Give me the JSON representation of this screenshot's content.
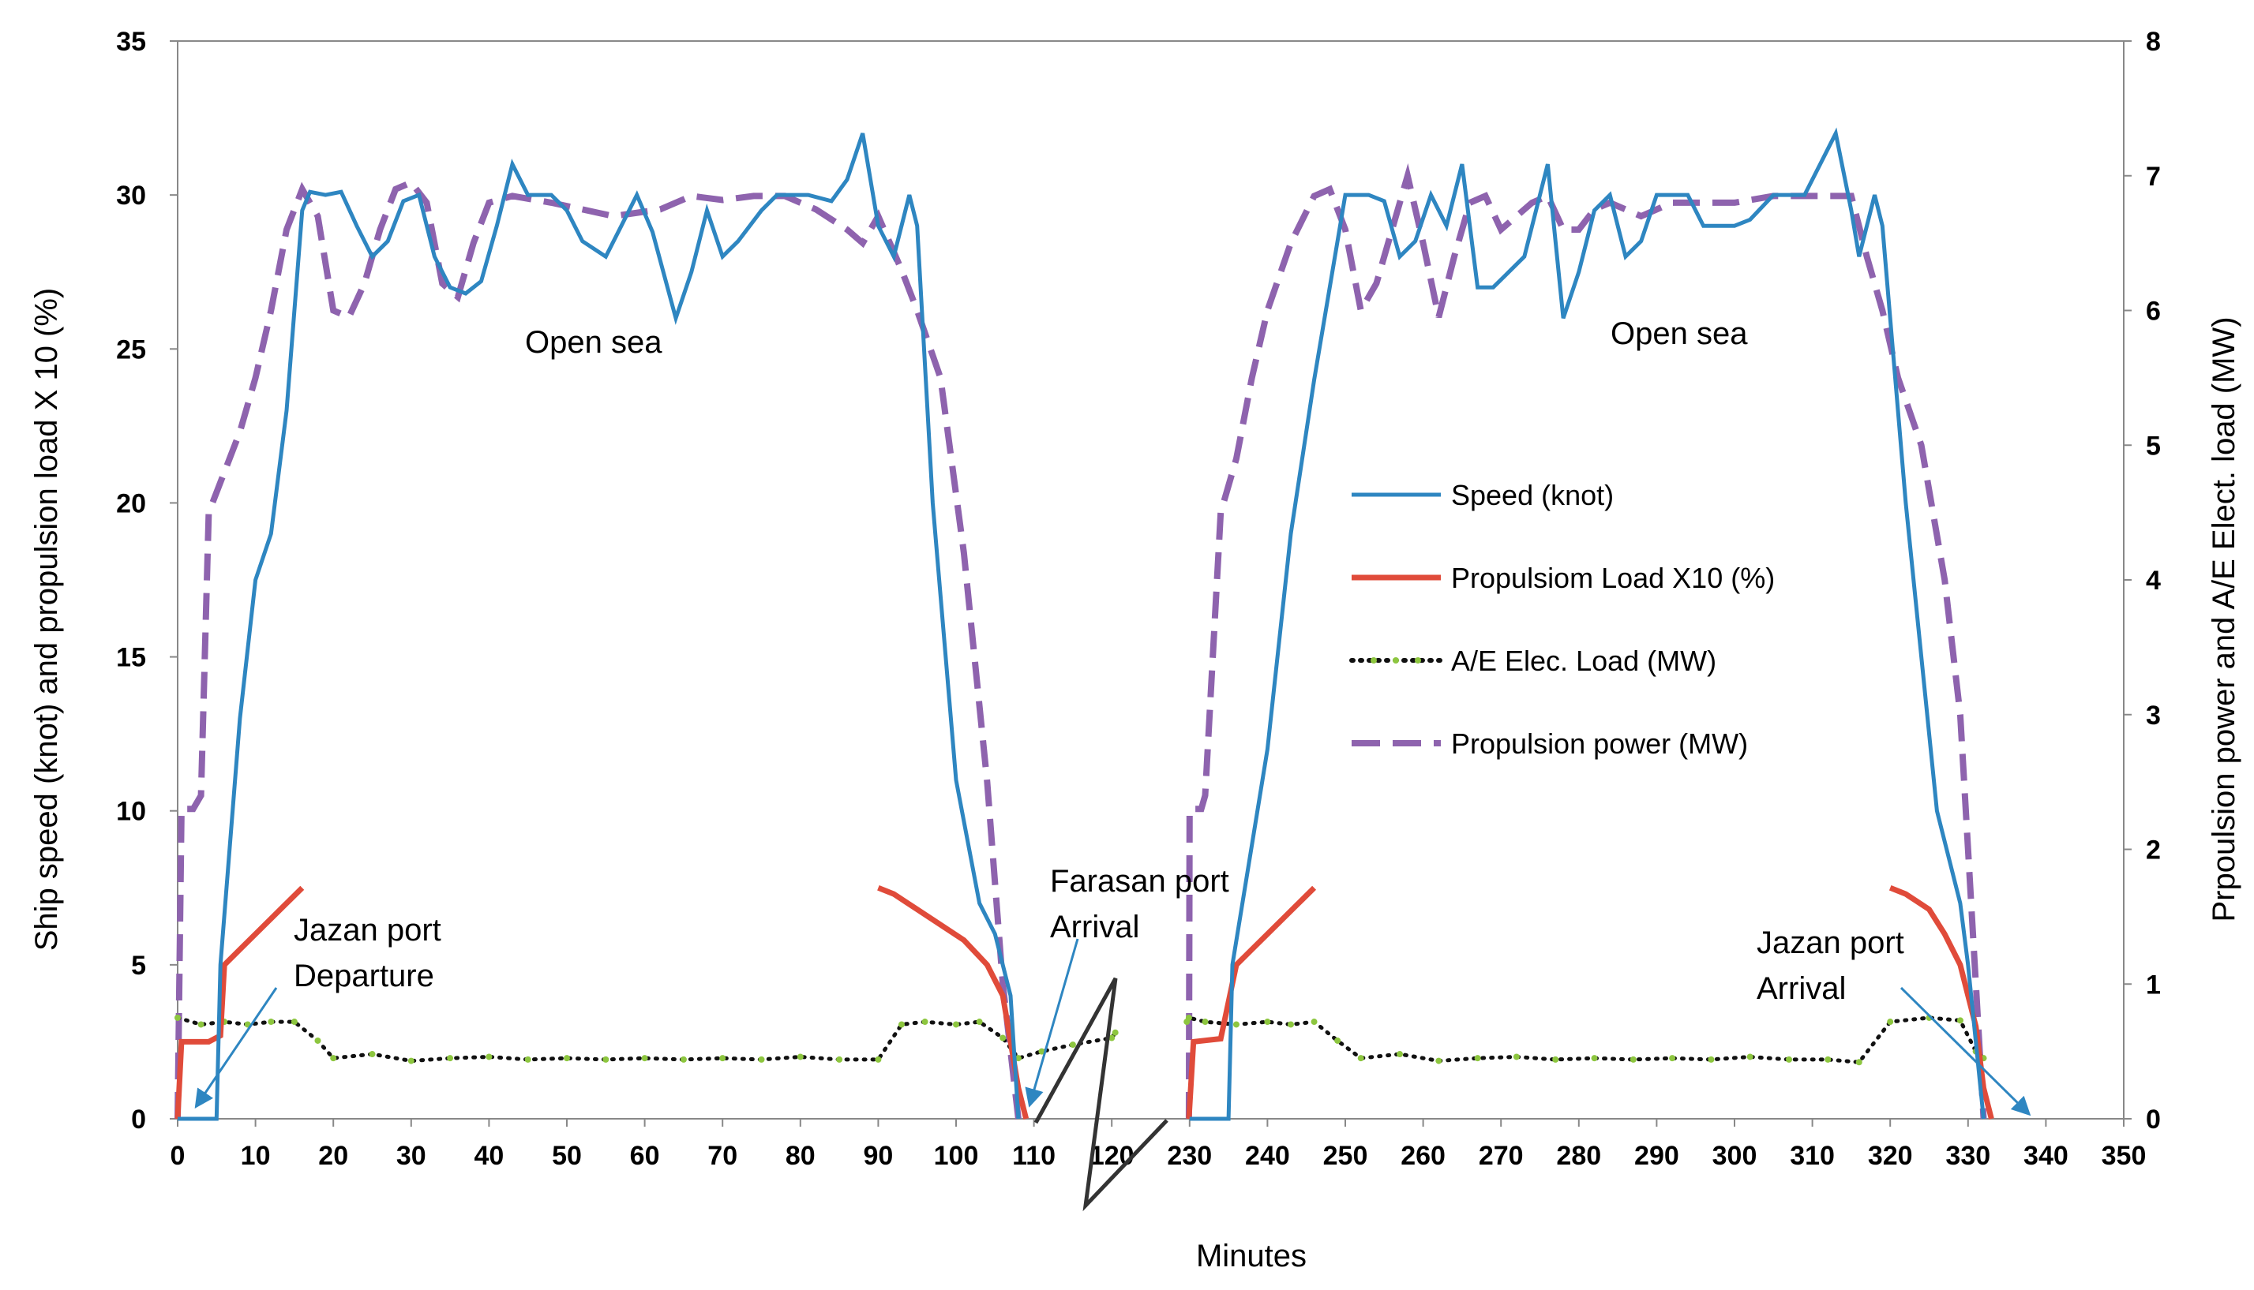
{
  "chart_data": {
    "type": "line",
    "xlabel": "Minutes",
    "ylabel_left": "Ship speed (knot) and propulsion load X 10 (%)",
    "ylabel_right": "Prpoulsion power and A/E  Elect. load (MW)",
    "x_ticks": [
      "0",
      "10",
      "20",
      "30",
      "40",
      "50",
      "60",
      "70",
      "80",
      "90",
      "100",
      "110",
      "120",
      "230",
      "240",
      "250",
      "260",
      "270",
      "280",
      "290",
      "300",
      "310",
      "320",
      "330",
      "340",
      "350"
    ],
    "y_left_ticks": [
      "0",
      "5",
      "10",
      "15",
      "20",
      "25",
      "30",
      "35"
    ],
    "y_right_ticks": [
      "0",
      "1",
      "2",
      "3",
      "4",
      "5",
      "6",
      "7",
      "8"
    ],
    "ylim_left": [
      0,
      35
    ],
    "ylim_right": [
      0,
      8
    ],
    "grid": false,
    "axis_break": "between 120 and 230 minutes",
    "colors": {
      "speed": "#2E86C1",
      "load": "#E04B3A",
      "ae": "#111111",
      "ae_marker": "#8DC63F",
      "power": "#8E63AE",
      "arrow": "#2E86C1",
      "break": "#333333"
    },
    "annotations": [
      {
        "id": "open-sea-1",
        "lines": [
          "Open sea"
        ]
      },
      {
        "id": "open-sea-2",
        "lines": [
          "Open sea"
        ]
      },
      {
        "id": "jazan-departure",
        "lines": [
          "Jazan  port",
          "Departure"
        ]
      },
      {
        "id": "farasan-arrival",
        "lines": [
          "Farasan port",
          "Arrival"
        ]
      },
      {
        "id": "jazan-arrival",
        "lines": [
          "Jazan  port",
          "Arrival"
        ]
      }
    ],
    "legend": [
      {
        "key": "speed",
        "label": "Speed (knot)",
        "style": "solid"
      },
      {
        "key": "load",
        "label": "Propulsiom Load X10 (%)",
        "style": "solid"
      },
      {
        "key": "ae",
        "label": "A/E  Elec. Load (MW)",
        "style": "dotted"
      },
      {
        "key": "power",
        "label": "Propulsion power (MW)",
        "style": "dashed"
      }
    ],
    "series": [
      {
        "key": "speed",
        "name": "Speed (knot)",
        "axis": "left",
        "points": [
          [
            0,
            0
          ],
          [
            5,
            0
          ],
          [
            5.5,
            5
          ],
          [
            8,
            13
          ],
          [
            10,
            17.5
          ],
          [
            12,
            19
          ],
          [
            14,
            23
          ],
          [
            16,
            29.5
          ],
          [
            17,
            30.1
          ],
          [
            19,
            30
          ],
          [
            21,
            30.1
          ],
          [
            23,
            29
          ],
          [
            25,
            28
          ],
          [
            27,
            28.5
          ],
          [
            29,
            29.8
          ],
          [
            31,
            30
          ],
          [
            33,
            28
          ],
          [
            35,
            27
          ],
          [
            37,
            26.8
          ],
          [
            39,
            27.2
          ],
          [
            41,
            29
          ],
          [
            43,
            31
          ],
          [
            45,
            30
          ],
          [
            48,
            30
          ],
          [
            50,
            29.5
          ],
          [
            52,
            28.5
          ],
          [
            55,
            28
          ],
          [
            57,
            29
          ],
          [
            59,
            30
          ],
          [
            61,
            28.8
          ],
          [
            64,
            26
          ],
          [
            66,
            27.5
          ],
          [
            68,
            29.5
          ],
          [
            70,
            28
          ],
          [
            72,
            28.5
          ],
          [
            75,
            29.5
          ],
          [
            77,
            30
          ],
          [
            79,
            30
          ],
          [
            81,
            30
          ],
          [
            84,
            29.8
          ],
          [
            86,
            30.5
          ],
          [
            88,
            32
          ],
          [
            90,
            29
          ],
          [
            92,
            28
          ],
          [
            94,
            30
          ],
          [
            95,
            29
          ],
          [
            97,
            20
          ],
          [
            100,
            11
          ],
          [
            103,
            7
          ],
          [
            105,
            6
          ],
          [
            107,
            4
          ],
          [
            108,
            0
          ],
          [
            230,
            0
          ],
          [
            235,
            0
          ],
          [
            235.5,
            5
          ],
          [
            240,
            12
          ],
          [
            243,
            19
          ],
          [
            246,
            24
          ],
          [
            248,
            27
          ],
          [
            250,
            30
          ],
          [
            253,
            30
          ],
          [
            255,
            29.8
          ],
          [
            257,
            28
          ],
          [
            259,
            28.5
          ],
          [
            261,
            30
          ],
          [
            263,
            29
          ],
          [
            265,
            31
          ],
          [
            267,
            27
          ],
          [
            269,
            27
          ],
          [
            271,
            27.5
          ],
          [
            273,
            28
          ],
          [
            276,
            31
          ],
          [
            278,
            26
          ],
          [
            280,
            27.5
          ],
          [
            282,
            29.5
          ],
          [
            284,
            30
          ],
          [
            286,
            28
          ],
          [
            288,
            28.5
          ],
          [
            290,
            30
          ],
          [
            292,
            30
          ],
          [
            294,
            30
          ],
          [
            296,
            29
          ],
          [
            300,
            29
          ],
          [
            302,
            29.2
          ],
          [
            305,
            30
          ],
          [
            309,
            30
          ],
          [
            311,
            31
          ],
          [
            313,
            32
          ],
          [
            315,
            29.5
          ],
          [
            316,
            28
          ],
          [
            318,
            30
          ],
          [
            319,
            29
          ],
          [
            322,
            20
          ],
          [
            326,
            10
          ],
          [
            329,
            7
          ],
          [
            330,
            5
          ],
          [
            332,
            0
          ]
        ]
      },
      {
        "key": "load",
        "name": "Propulsiom Load X10 (%)",
        "axis": "left",
        "points": [
          [
            0,
            0
          ],
          [
            0.5,
            2.5
          ],
          [
            4,
            2.5
          ],
          [
            5.5,
            2.7
          ],
          [
            6,
            5
          ],
          [
            8,
            5.5
          ],
          [
            10,
            6
          ],
          [
            12,
            6.5
          ],
          [
            14,
            7
          ],
          [
            16,
            7.5
          ],
          [
            90,
            7.5
          ],
          [
            92,
            7.3
          ],
          [
            95,
            6.8
          ],
          [
            98,
            6.3
          ],
          [
            101,
            5.8
          ],
          [
            104,
            5
          ],
          [
            106,
            4
          ],
          [
            107,
            2.5
          ],
          [
            108,
            1
          ],
          [
            109,
            0
          ],
          [
            229,
            0
          ],
          [
            230.5,
            2.5
          ],
          [
            234,
            2.6
          ],
          [
            236,
            5
          ],
          [
            238,
            5.5
          ],
          [
            240,
            6
          ],
          [
            242,
            6.5
          ],
          [
            244,
            7
          ],
          [
            246,
            7.5
          ],
          [
            320,
            7.5
          ],
          [
            322,
            7.3
          ],
          [
            325,
            6.8
          ],
          [
            327,
            6
          ],
          [
            329,
            5
          ],
          [
            331,
            3
          ],
          [
            332,
            1
          ],
          [
            333,
            0
          ]
        ]
      },
      {
        "key": "ae",
        "name": "A/E  Elec. Load (MW)",
        "axis": "right",
        "points": [
          [
            0,
            0.75
          ],
          [
            3,
            0.7
          ],
          [
            6,
            0.72
          ],
          [
            9,
            0.7
          ],
          [
            12,
            0.72
          ],
          [
            15,
            0.72
          ],
          [
            18,
            0.58
          ],
          [
            20,
            0.45
          ],
          [
            25,
            0.48
          ],
          [
            30,
            0.43
          ],
          [
            35,
            0.45
          ],
          [
            40,
            0.46
          ],
          [
            45,
            0.44
          ],
          [
            50,
            0.45
          ],
          [
            55,
            0.44
          ],
          [
            60,
            0.45
          ],
          [
            65,
            0.44
          ],
          [
            70,
            0.45
          ],
          [
            75,
            0.44
          ],
          [
            80,
            0.46
          ],
          [
            85,
            0.44
          ],
          [
            90,
            0.44
          ],
          [
            93,
            0.7
          ],
          [
            96,
            0.72
          ],
          [
            100,
            0.7
          ],
          [
            103,
            0.72
          ],
          [
            106,
            0.6
          ],
          [
            108,
            0.45
          ],
          [
            111,
            0.5
          ],
          [
            115,
            0.55
          ],
          [
            120,
            0.6
          ],
          [
            125,
            0.64
          ],
          [
            226,
            0.72
          ],
          [
            229,
            0.75
          ],
          [
            232,
            0.72
          ],
          [
            236,
            0.7
          ],
          [
            240,
            0.72
          ],
          [
            243,
            0.7
          ],
          [
            246,
            0.72
          ],
          [
            249,
            0.58
          ],
          [
            252,
            0.45
          ],
          [
            257,
            0.48
          ],
          [
            262,
            0.43
          ],
          [
            267,
            0.45
          ],
          [
            272,
            0.46
          ],
          [
            277,
            0.44
          ],
          [
            282,
            0.45
          ],
          [
            287,
            0.44
          ],
          [
            292,
            0.45
          ],
          [
            297,
            0.44
          ],
          [
            302,
            0.46
          ],
          [
            307,
            0.44
          ],
          [
            312,
            0.44
          ],
          [
            316,
            0.42
          ],
          [
            320,
            0.72
          ],
          [
            325,
            0.75
          ],
          [
            329,
            0.73
          ],
          [
            331,
            0.5
          ],
          [
            332,
            0.45
          ]
        ]
      },
      {
        "key": "power",
        "name": "Propulsion power (MW)",
        "axis": "right",
        "points": [
          [
            0,
            0
          ],
          [
            0.5,
            2.3
          ],
          [
            2,
            2.3
          ],
          [
            3,
            2.4
          ],
          [
            4,
            4.5
          ],
          [
            6,
            4.8
          ],
          [
            8,
            5.1
          ],
          [
            10,
            5.5
          ],
          [
            12,
            6
          ],
          [
            14,
            6.6
          ],
          [
            16,
            6.9
          ],
          [
            18,
            6.7
          ],
          [
            20,
            6.0
          ],
          [
            22,
            5.95
          ],
          [
            24,
            6.2
          ],
          [
            26,
            6.6
          ],
          [
            28,
            6.9
          ],
          [
            30,
            6.95
          ],
          [
            32,
            6.8
          ],
          [
            34,
            6.2
          ],
          [
            36,
            6.1
          ],
          [
            38,
            6.5
          ],
          [
            40,
            6.8
          ],
          [
            43,
            6.85
          ],
          [
            48,
            6.8
          ],
          [
            52,
            6.75
          ],
          [
            56,
            6.7
          ],
          [
            62,
            6.75
          ],
          [
            66,
            6.85
          ],
          [
            70,
            6.82
          ],
          [
            74,
            6.85
          ],
          [
            78,
            6.85
          ],
          [
            82,
            6.75
          ],
          [
            86,
            6.6
          ],
          [
            88,
            6.5
          ],
          [
            90,
            6.7
          ],
          [
            93,
            6.3
          ],
          [
            95,
            6.0
          ],
          [
            98,
            5.5
          ],
          [
            101,
            4.2
          ],
          [
            104,
            2.5
          ],
          [
            106,
            1.0
          ],
          [
            108,
            0
          ],
          [
            229,
            0
          ],
          [
            230,
            2.3
          ],
          [
            231.5,
            2.3
          ],
          [
            232,
            2.4
          ],
          [
            234,
            4.5
          ],
          [
            236,
            4.9
          ],
          [
            238,
            5.5
          ],
          [
            240,
            6
          ],
          [
            243,
            6.5
          ],
          [
            246,
            6.85
          ],
          [
            248,
            6.9
          ],
          [
            250,
            6.6
          ],
          [
            252,
            6.0
          ],
          [
            254,
            6.2
          ],
          [
            256,
            6.6
          ],
          [
            258,
            7.0
          ],
          [
            260,
            6.5
          ],
          [
            262,
            5.95
          ],
          [
            264,
            6.4
          ],
          [
            266,
            6.8
          ],
          [
            268,
            6.85
          ],
          [
            270,
            6.6
          ],
          [
            272,
            6.7
          ],
          [
            274,
            6.8
          ],
          [
            276,
            6.85
          ],
          [
            278,
            6.6
          ],
          [
            280,
            6.6
          ],
          [
            282,
            6.75
          ],
          [
            284,
            6.8
          ],
          [
            286,
            6.75
          ],
          [
            288,
            6.7
          ],
          [
            290,
            6.75
          ],
          [
            292,
            6.8
          ],
          [
            295,
            6.8
          ],
          [
            300,
            6.8
          ],
          [
            305,
            6.85
          ],
          [
            310,
            6.85
          ],
          [
            313,
            6.85
          ],
          [
            315,
            6.85
          ],
          [
            317,
            6.4
          ],
          [
            319,
            6.0
          ],
          [
            321,
            5.5
          ],
          [
            324,
            5.0
          ],
          [
            327,
            4.0
          ],
          [
            329,
            3.0
          ],
          [
            330,
            2.0
          ],
          [
            331,
            1.0
          ],
          [
            332,
            0
          ]
        ]
      }
    ]
  }
}
